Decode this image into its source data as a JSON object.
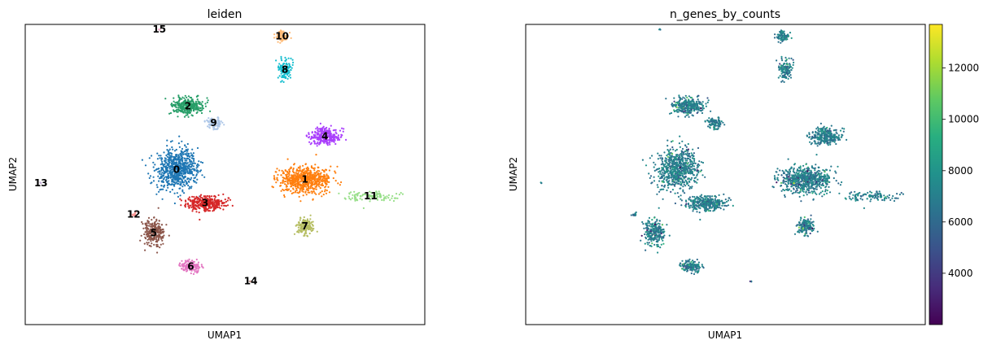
{
  "chart_data": [
    {
      "type": "scatter",
      "title": "leiden",
      "xlabel": "UMAP1",
      "ylabel": "UMAP2",
      "grid": false,
      "legend": "on data",
      "xlim": [
        -3.5,
        10.5
      ],
      "ylim": [
        -3.5,
        14.5
      ],
      "clusters": [
        {
          "name": "0",
          "color": "#1f77b4",
          "center": [
            1.8,
            5.8
          ],
          "spread": [
            0.6,
            1.05
          ],
          "count": 700
        },
        {
          "name": "1",
          "color": "#ff7f0e",
          "center": [
            6.3,
            5.2
          ],
          "spread": [
            0.75,
            0.65
          ],
          "count": 650
        },
        {
          "name": "2",
          "color": "#279e68",
          "center": [
            2.2,
            9.6
          ],
          "spread": [
            0.45,
            0.38
          ],
          "count": 330
        },
        {
          "name": "3",
          "color": "#d62728",
          "center": [
            2.8,
            3.8
          ],
          "spread": [
            0.55,
            0.35
          ],
          "count": 330
        },
        {
          "name": "4",
          "color": "#aa40fc",
          "center": [
            7.0,
            7.8
          ],
          "spread": [
            0.45,
            0.45
          ],
          "count": 280
        },
        {
          "name": "5",
          "color": "#8c564b",
          "center": [
            1.0,
            2.0
          ],
          "spread": [
            0.32,
            0.65
          ],
          "count": 260
        },
        {
          "name": "6",
          "color": "#e377c2",
          "center": [
            2.3,
            0.0
          ],
          "spread": [
            0.28,
            0.25
          ],
          "count": 150
        },
        {
          "name": "7",
          "color": "#b5bd61",
          "center": [
            6.3,
            2.4
          ],
          "spread": [
            0.25,
            0.4
          ],
          "count": 160
        },
        {
          "name": "8",
          "color": "#17becf",
          "center": [
            5.6,
            11.8
          ],
          "spread": [
            0.18,
            0.45
          ],
          "count": 140
        },
        {
          "name": "9",
          "color": "#aec7e8",
          "center": [
            3.1,
            8.6
          ],
          "spread": [
            0.25,
            0.28
          ],
          "count": 90
        },
        {
          "name": "10",
          "color": "#ffbb78",
          "center": [
            5.5,
            13.8
          ],
          "spread": [
            0.18,
            0.25
          ],
          "count": 80
        },
        {
          "name": "11",
          "color": "#98df8a",
          "center": [
            8.6,
            4.2
          ],
          "spread": [
            0.7,
            0.25
          ],
          "count": 110
        },
        {
          "name": "12",
          "color": "#ff9896",
          "center": [
            0.3,
            3.1
          ],
          "spread": [
            0.08,
            0.1
          ],
          "count": 14
        },
        {
          "name": "13",
          "color": "#c5b0d5",
          "center": [
            -2.95,
            5.0
          ],
          "spread": [
            0.03,
            0.03
          ],
          "count": 3
        },
        {
          "name": "14",
          "color": "#c49c94",
          "center": [
            4.4,
            -0.9
          ],
          "spread": [
            0.03,
            0.03
          ],
          "count": 3
        },
        {
          "name": "15",
          "color": "#f7b6d2",
          "center": [
            1.2,
            14.2
          ],
          "spread": [
            0.03,
            0.03
          ],
          "count": 3
        }
      ]
    },
    {
      "type": "scatter",
      "title": "n_genes_by_counts",
      "xlabel": "UMAP1",
      "ylabel": "UMAP2",
      "grid": false,
      "colormap": "viridis",
      "color_range": [
        2000,
        13700
      ],
      "colorbar_ticks": [
        4000,
        6000,
        8000,
        10000,
        12000
      ],
      "colorbar_tick_labels": [
        "4000",
        "6000",
        "8000",
        "10000",
        "12000"
      ],
      "note_points": "same cells as the leiden panel, colored by gene count"
    }
  ]
}
